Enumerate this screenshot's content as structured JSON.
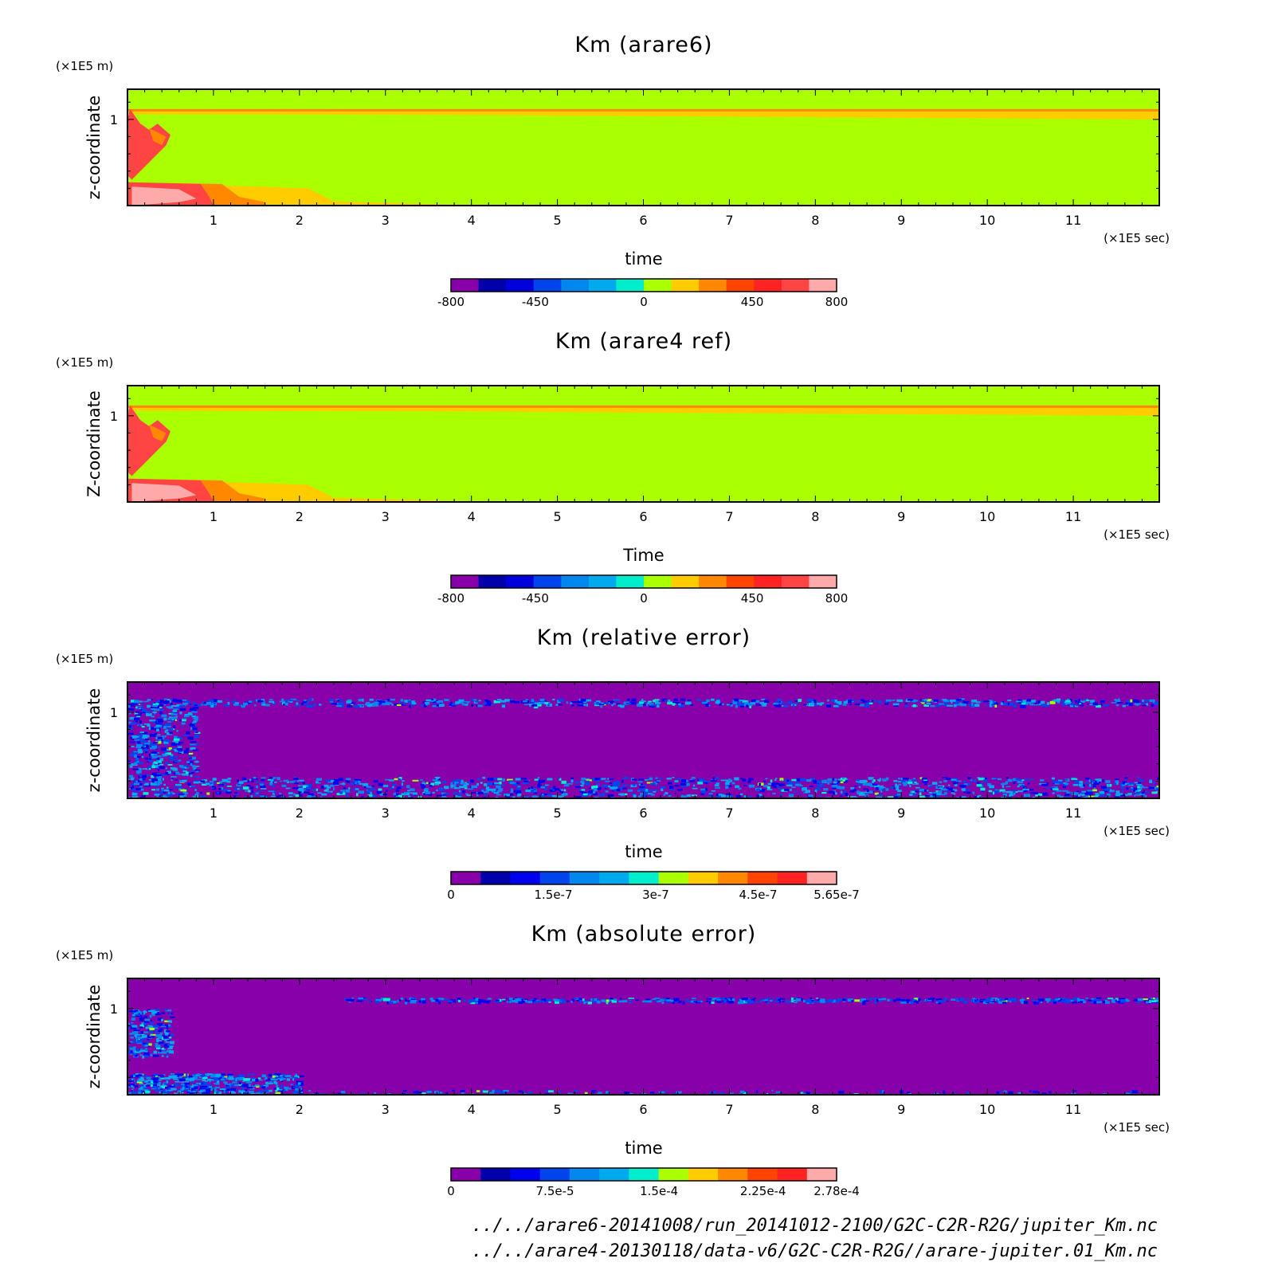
{
  "chart_data": [
    {
      "type": "heatmap",
      "title": "Km (arare6)",
      "xlabel": "time",
      "ylabel": "z-coordinate",
      "x_unit": "(×1E5 sec)",
      "y_unit": "(×1E5 m)",
      "xlim": [
        0,
        12
      ],
      "ylim": [
        0,
        1.35
      ],
      "x_ticks": [
        "1",
        "2",
        "3",
        "4",
        "5",
        "6",
        "7",
        "8",
        "9",
        "10",
        "11"
      ],
      "y_ticks": [
        "1"
      ],
      "pattern": "field",
      "colorbar": {
        "range": [
          -800,
          800
        ],
        "labels": [
          "-800",
          "-450",
          "0",
          "450",
          "800"
        ],
        "colors": [
          "#8800aa",
          "#0000aa",
          "#0000dd",
          "#0044ee",
          "#0088ee",
          "#00aaee",
          "#00eecc",
          "#aaff00",
          "#ffcc00",
          "#ff8800",
          "#ff4400",
          "#ff2222",
          "#ff4444",
          "#ffaaaa"
        ]
      }
    },
    {
      "type": "heatmap",
      "title": "Km (arare4 ref)",
      "xlabel": "Time",
      "ylabel": "Z-coordinate",
      "x_unit": "(×1E5 sec)",
      "y_unit": "(×1E5 m)",
      "xlim": [
        0,
        12
      ],
      "ylim": [
        0,
        1.35
      ],
      "x_ticks": [
        "1",
        "2",
        "3",
        "4",
        "5",
        "6",
        "7",
        "8",
        "9",
        "10",
        "11"
      ],
      "y_ticks": [
        "1"
      ],
      "pattern": "field",
      "colorbar": {
        "range": [
          -800,
          800
        ],
        "labels": [
          "-800",
          "-450",
          "0",
          "450",
          "800"
        ],
        "colors": [
          "#8800aa",
          "#0000aa",
          "#0000dd",
          "#0044ee",
          "#0088ee",
          "#00aaee",
          "#00eecc",
          "#aaff00",
          "#ffcc00",
          "#ff8800",
          "#ff4400",
          "#ff2222",
          "#ff4444",
          "#ffaaaa"
        ]
      }
    },
    {
      "type": "heatmap",
      "title": "Km (relative error)",
      "xlabel": "time",
      "ylabel": "z-coordinate",
      "x_unit": "(×1E5 sec)",
      "y_unit": "(×1E5 m)",
      "xlim": [
        0,
        12
      ],
      "ylim": [
        0,
        1.35
      ],
      "x_ticks": [
        "1",
        "2",
        "3",
        "4",
        "5",
        "6",
        "7",
        "8",
        "9",
        "10",
        "11"
      ],
      "y_ticks": [
        "1"
      ],
      "pattern": "relerr",
      "colorbar": {
        "range": [
          0,
          5.65e-07
        ],
        "labels": [
          "0",
          "1.5e-7",
          "3e-7",
          "4.5e-7",
          "5.65e-7"
        ],
        "colors": [
          "#8800aa",
          "#0000aa",
          "#0000ee",
          "#0044ee",
          "#0088ee",
          "#00aaee",
          "#00eecc",
          "#aaff00",
          "#ffcc00",
          "#ff8800",
          "#ff4400",
          "#ff2222",
          "#ffaaaa"
        ]
      }
    },
    {
      "type": "heatmap",
      "title": "Km (absolute error)",
      "xlabel": "time",
      "ylabel": "z-coordinate",
      "x_unit": "(×1E5 sec)",
      "y_unit": "(×1E5 m)",
      "xlim": [
        0,
        12
      ],
      "ylim": [
        0,
        1.35
      ],
      "x_ticks": [
        "1",
        "2",
        "3",
        "4",
        "5",
        "6",
        "7",
        "8",
        "9",
        "10",
        "11"
      ],
      "y_ticks": [
        "1"
      ],
      "pattern": "abserr",
      "colorbar": {
        "range": [
          0,
          0.000278
        ],
        "labels": [
          "0",
          "7.5e-5",
          "1.5e-4",
          "2.25e-4",
          "2.78e-4"
        ],
        "colors": [
          "#8800aa",
          "#0000aa",
          "#0000ee",
          "#0044ee",
          "#0088ee",
          "#00aaee",
          "#00eecc",
          "#aaff00",
          "#ffcc00",
          "#ff8800",
          "#ff4400",
          "#ff2222",
          "#ffaaaa"
        ]
      }
    }
  ],
  "footer": {
    "line1": "../../arare6-20141008/run_20141012-2100/G2C-C2R-R2G/jupiter_Km.nc",
    "line2": "../../arare4-20130118/data-v6/G2C-C2R-R2G//arare-jupiter.01_Km.nc"
  }
}
